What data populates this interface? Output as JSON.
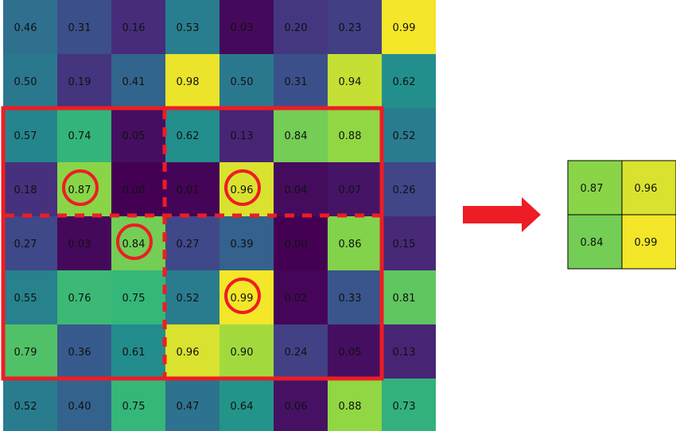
{
  "input_grid": {
    "rows": [
      [
        "0.46",
        "0.31",
        "0.16",
        "0.53",
        "0.03",
        "0.20",
        "0.23",
        "0.99"
      ],
      [
        "0.50",
        "0.19",
        "0.41",
        "0.98",
        "0.50",
        "0.31",
        "0.94",
        "0.62"
      ],
      [
        "0.57",
        "0.74",
        "0.05",
        "0.62",
        "0.13",
        "0.84",
        "0.88",
        "0.52"
      ],
      [
        "0.18",
        "0.87",
        "0.00",
        "0.01",
        "0.96",
        "0.04",
        "0.07",
        "0.26"
      ],
      [
        "0.27",
        "0.03",
        "0.84",
        "0.27",
        "0.39",
        "0.00",
        "0.86",
        "0.15"
      ],
      [
        "0.55",
        "0.76",
        "0.75",
        "0.52",
        "0.99",
        "0.02",
        "0.33",
        "0.81"
      ],
      [
        "0.79",
        "0.36",
        "0.61",
        "0.96",
        "0.90",
        "0.24",
        "0.05",
        "0.13"
      ],
      [
        "0.52",
        "0.40",
        "0.75",
        "0.47",
        "0.64",
        "0.06",
        "0.88",
        "0.73"
      ]
    ],
    "highlighted_cells": [
      [
        3,
        1
      ],
      [
        3,
        4
      ],
      [
        4,
        2
      ],
      [
        5,
        4
      ]
    ],
    "colormap": "viridis"
  },
  "output_grid": {
    "rows": [
      [
        "0.87",
        "0.96"
      ],
      [
        "0.84",
        "0.99"
      ]
    ]
  },
  "colors": {
    "highlight": "#ee1c24",
    "arrow": "#ee1c24",
    "text": "#111111",
    "output_border": "#000000"
  },
  "icons": {
    "arrow": "right-arrow-icon"
  }
}
